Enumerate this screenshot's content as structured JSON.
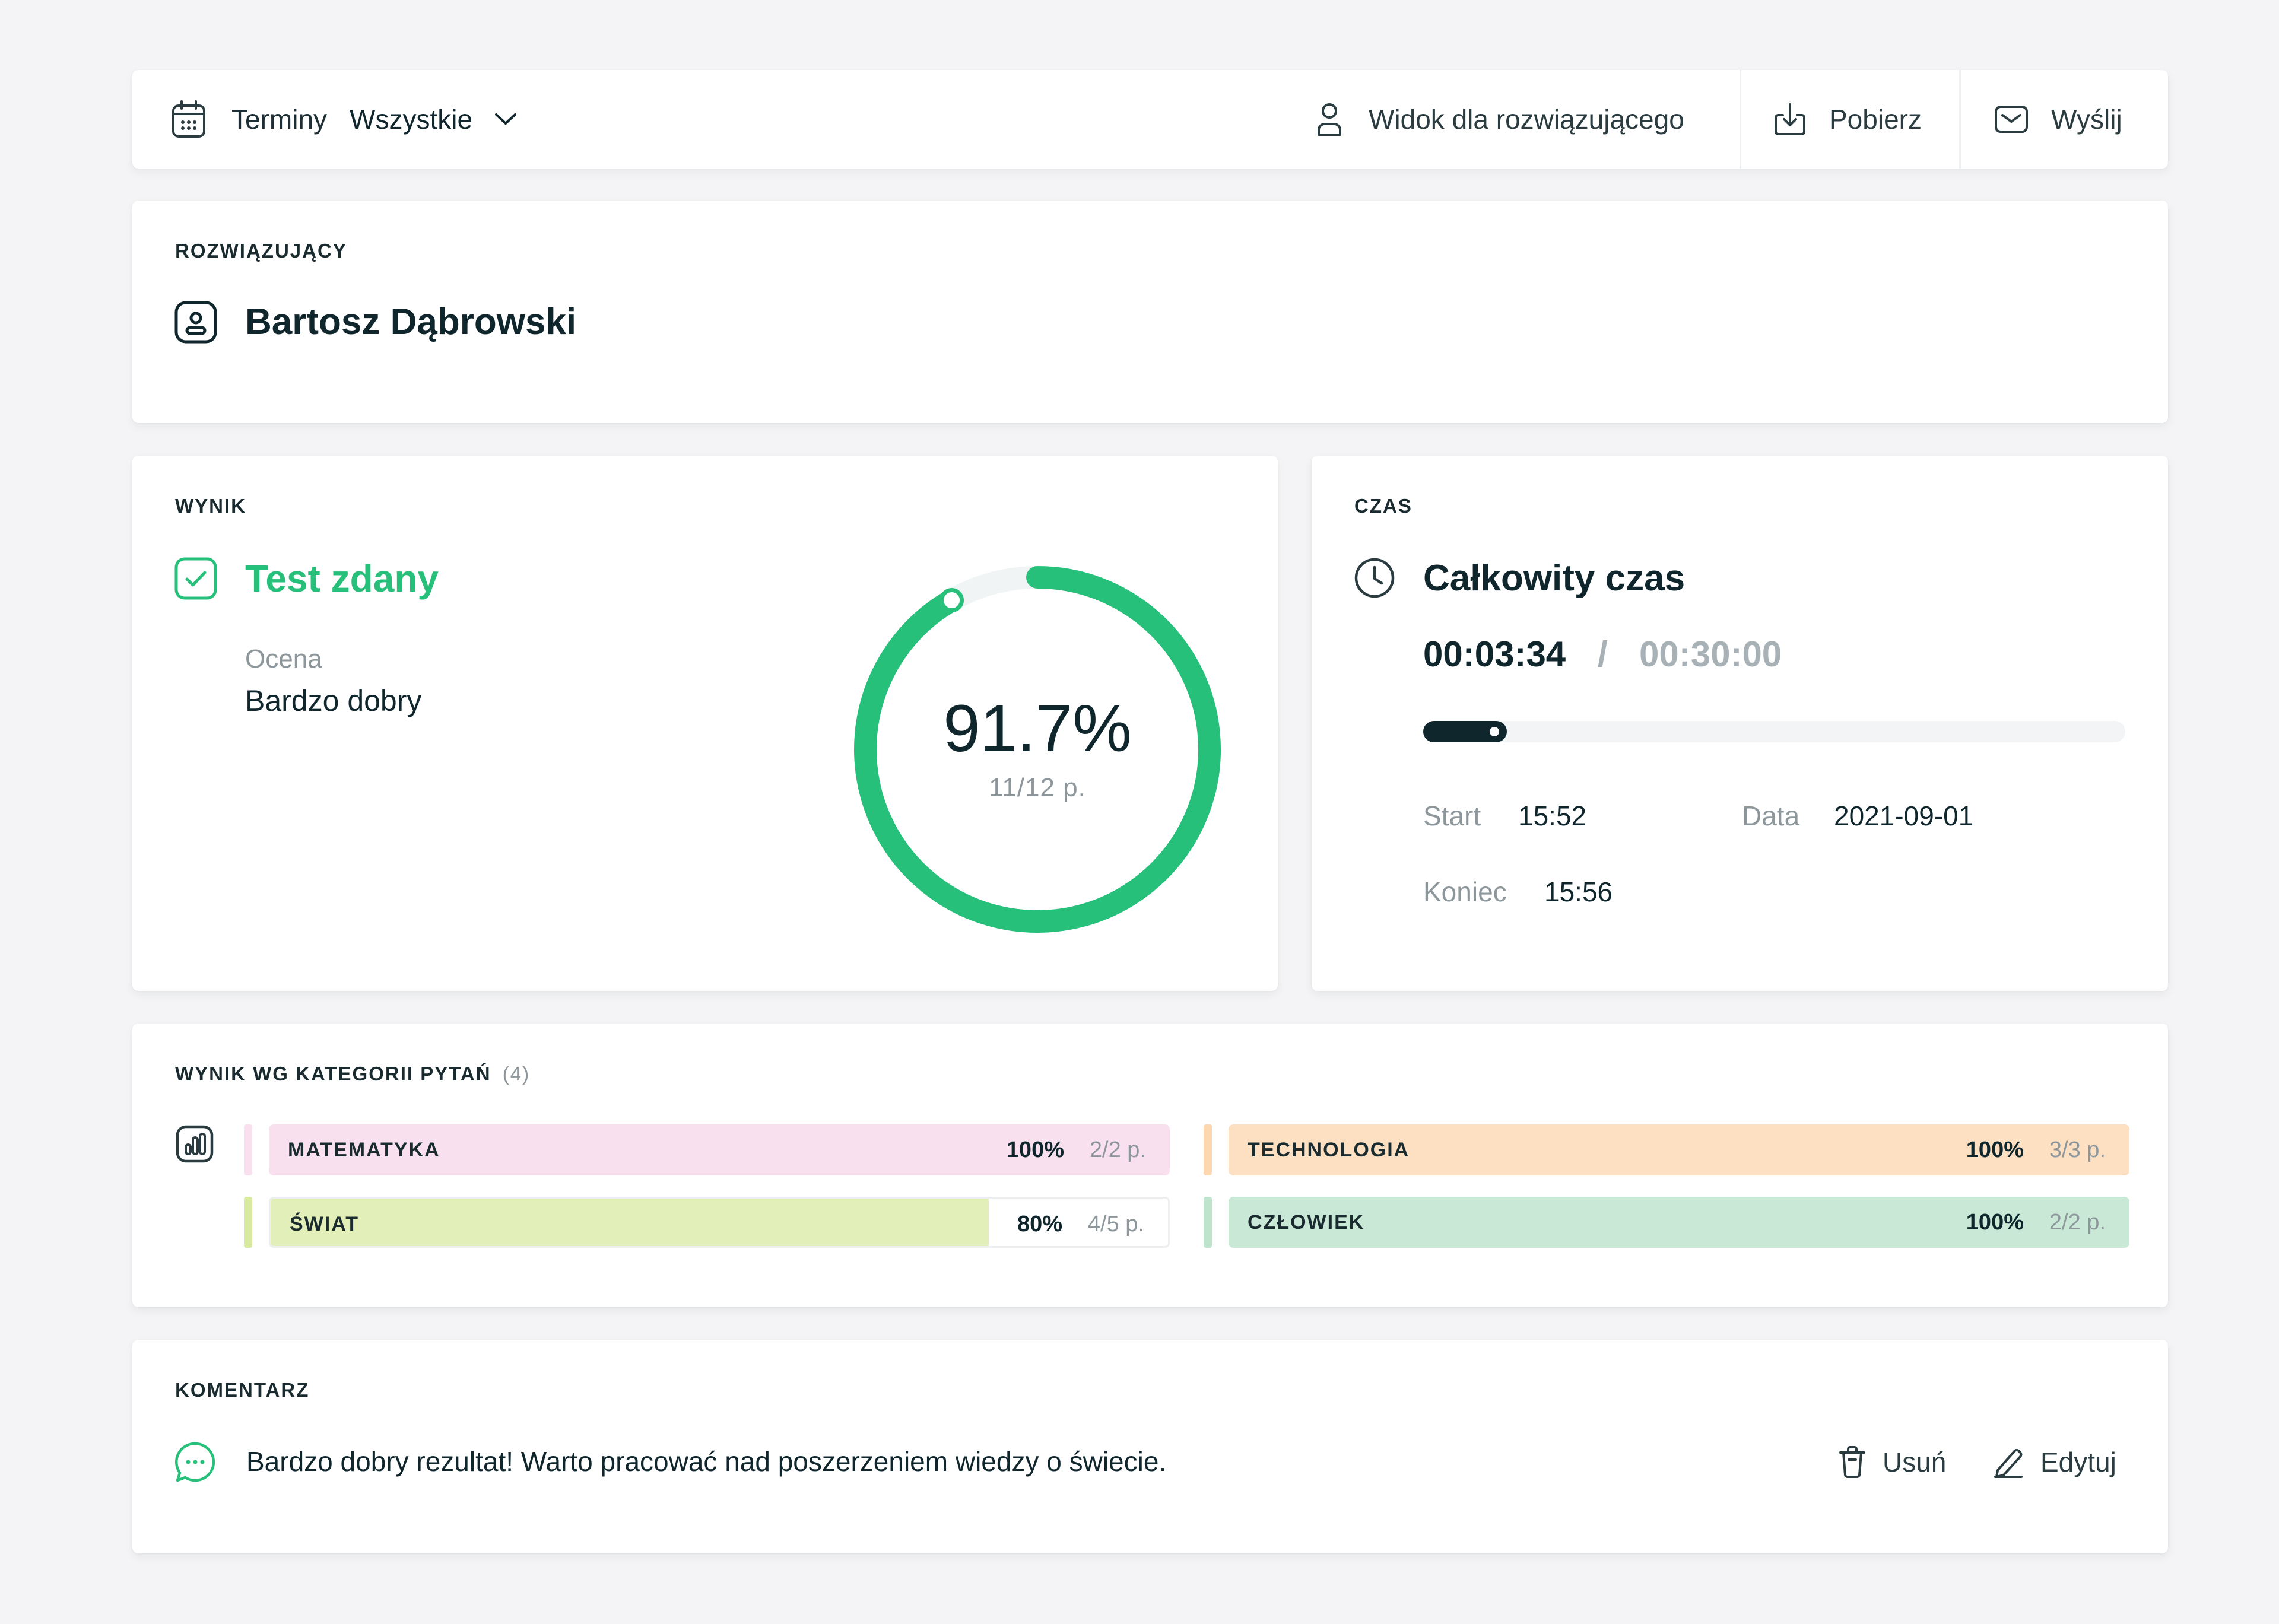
{
  "toolbar": {
    "terms_label": "Terminy",
    "terms_value": "Wszystkie",
    "view_label": "Widok dla rozwiązującego",
    "download_label": "Pobierz",
    "send_label": "Wyślij",
    "icons": [
      "calendar-icon",
      "chevron-down-icon",
      "user-icon",
      "download-icon",
      "mail-icon"
    ]
  },
  "solver": {
    "section_label": "ROZWIĄZUJĄCY",
    "name": "Bartosz Dąbrowski"
  },
  "score": {
    "section_label": "WYNIK",
    "status": "Test zdany",
    "grade_label": "Ocena",
    "grade_value": "Bardzo dobry",
    "percent_text": "91.7%",
    "percent_value": 91.7,
    "points_text": "11/12 p.",
    "accent_color": "#27c07a"
  },
  "time": {
    "section_label": "CZAS",
    "title": "Całkowity czas",
    "elapsed": "00:03:34",
    "separator": "/",
    "limit": "00:30:00",
    "progress_fraction": 0.119,
    "start_label": "Start",
    "start_value": "15:52",
    "date_label": "Data",
    "date_value": "2021-09-01",
    "end_label": "Koniec",
    "end_value": "15:56"
  },
  "categories": {
    "section_label": "WYNIK WG KATEGORII PYTAŃ",
    "count": "(4)",
    "items": [
      {
        "name": "MATEMATYKA",
        "percent": "100%",
        "points": "2/2 p.",
        "fill": 1.0,
        "color": "#f9e0ee",
        "accent": "#f9e0ee"
      },
      {
        "name": "TECHNOLOGIA",
        "percent": "100%",
        "points": "3/3 p.",
        "fill": 1.0,
        "color": "#fde0c2",
        "accent": "#fcd7b0"
      },
      {
        "name": "ŚWIAT",
        "percent": "80%",
        "points": "4/5 p.",
        "fill": 0.8,
        "color": "#e3efb8",
        "accent": "#d8eaa0"
      },
      {
        "name": "CZŁOWIEK",
        "percent": "100%",
        "points": "2/2 p.",
        "fill": 1.0,
        "color": "#c9e9d6",
        "accent": "#bfe4cd"
      }
    ]
  },
  "comment": {
    "section_label": "KOMENTARZ",
    "text": "Bardzo dobry rezultat! Warto pracować nad poszerzeniem wiedzy o świecie.",
    "delete_label": "Usuń",
    "edit_label": "Edytuj"
  }
}
